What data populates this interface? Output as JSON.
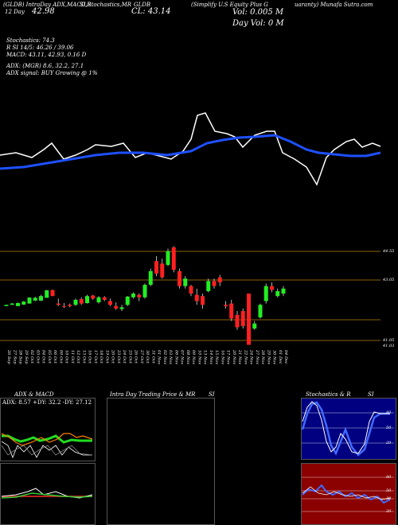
{
  "header": {
    "line1_left": "(GLDB) IntraDay ADX,MACD,R",
    "line1_mid": "SI,Stochastics,MR",
    "line1_right": "(Simplify U.S Equity Plus G",
    "line1_far": "uaranty) Munafa Sutra.com",
    "open_label": "12 Day",
    "open_val": "42.98",
    "close_label": "CL: 43.14",
    "symbol": "GLDB",
    "vol": "Vol: 0.005 M",
    "dayvol": "Day Vol: 0  M"
  },
  "indicators": {
    "stoch": "Stochastics: 74.3",
    "rsi": "R            SI 14/5: 46.26  /  39.06",
    "macd": "MACD: 43.11,  42.93,  0.16   D",
    "adx": "ADX:                        (MGR) 8.6,  32.2,  27.1",
    "adx_signal": "ADX  signal:                      BUY Growing @ 1%"
  },
  "price_levels": [
    "44.55",
    "43.05",
    "41.05",
    "41.03"
  ],
  "dates": [
    "26 Sep",
    "27 Sep",
    "28 Sep",
    "29 Sep",
    "02 Oct",
    "03 Oct",
    "04 Oct",
    "05 Oct",
    "06 Oct",
    "09 Oct",
    "10 Oct",
    "11 Oct",
    "12 Oct",
    "13 Oct",
    "16 Oct",
    "17 Oct",
    "18 Oct",
    "19 Oct",
    "20 Oct",
    "23 Oct",
    "24 Oct",
    "25 Oct",
    "26 Oct",
    "27 Oct",
    "30 Oct",
    "31 Oct",
    "01 Nov",
    "02 Nov",
    "03 Nov",
    "06 Nov",
    "07 Nov",
    "08 Nov",
    "09 Nov",
    "10 Nov",
    "13 Nov",
    "14 Nov",
    "15 Nov",
    "16 Nov",
    "17 Nov",
    "20 Nov",
    "21 Nov",
    "22 Nov",
    "24 Nov",
    "27 Nov",
    "28 Nov",
    "29 Nov",
    "30 Nov",
    "01 Dec",
    "04 Dec"
  ],
  "panels": {
    "adx_title": "ADX  & MACD",
    "adx_readout": "ADX: 8.57  +DY: 32.2  -DY: 27.12",
    "intra_title": "Intra  Day Trading Price  & MR",
    "intra_title2": "SI",
    "stoch_title": "Stochastics & R",
    "stoch_title2": "SI",
    "stoch_ticks": [
      "80",
      "50",
      "20"
    ],
    "rsi_ticks": [
      "80",
      "50",
      "30",
      "20"
    ]
  },
  "chart_data": {
    "type": "candlestick",
    "price_range": [
      40.9,
      45.2
    ],
    "candles": [
      [
        42.55,
        42.52,
        42.55,
        42.5
      ],
      [
        42.62,
        42.55,
        42.6,
        42.55
      ],
      [
        42.64,
        42.5,
        42.62,
        42.5
      ],
      [
        42.7,
        42.55,
        42.68,
        42.56
      ],
      [
        42.85,
        42.6,
        42.84,
        42.6
      ],
      [
        42.87,
        42.7,
        42.83,
        42.72
      ],
      [
        42.95,
        42.7,
        42.9,
        42.72
      ],
      [
        43.15,
        42.85,
        43.13,
        42.83
      ],
      [
        43.16,
        42.9,
        42.9,
        43.14
      ],
      [
        42.8,
        42.5,
        42.55,
        42.6
      ],
      [
        42.62,
        42.42,
        42.48,
        42.5
      ],
      [
        42.6,
        42.45,
        42.5,
        42.55
      ],
      [
        42.8,
        42.5,
        42.75,
        42.55
      ],
      [
        42.85,
        42.55,
        42.6,
        42.78
      ],
      [
        42.95,
        42.6,
        42.9,
        42.62
      ],
      [
        42.95,
        42.75,
        42.8,
        42.92
      ],
      [
        42.9,
        42.6,
        42.85,
        42.65
      ],
      [
        42.9,
        42.7,
        42.75,
        42.85
      ],
      [
        42.8,
        42.5,
        42.55,
        42.7
      ],
      [
        42.65,
        42.35,
        42.4,
        42.5
      ],
      [
        42.55,
        42.3,
        42.45,
        42.38
      ],
      [
        42.9,
        42.5,
        42.88,
        42.55
      ],
      [
        43.05,
        42.8,
        43.0,
        42.85
      ],
      [
        43.0,
        42.7,
        42.85,
        42.95
      ],
      [
        43.4,
        42.8,
        43.35,
        42.85
      ],
      [
        44.0,
        43.3,
        43.9,
        43.35
      ],
      [
        44.5,
        43.7,
        43.8,
        44.3
      ],
      [
        44.4,
        43.6,
        43.65,
        44.2
      ],
      [
        44.8,
        44.1,
        44.7,
        44.15
      ],
      [
        44.9,
        43.85,
        43.95,
        44.85
      ],
      [
        44.0,
        43.2,
        43.3,
        43.9
      ],
      [
        43.7,
        43.2,
        43.6,
        43.3
      ],
      [
        43.35,
        42.9,
        43.0,
        43.3
      ],
      [
        43.2,
        42.55,
        42.7,
        42.95
      ],
      [
        43.0,
        42.4,
        42.55,
        42.9
      ],
      [
        43.6,
        43.05,
        43.5,
        43.1
      ],
      [
        43.6,
        43.2,
        43.3,
        43.5
      ],
      [
        43.75,
        43.3,
        43.45,
        43.65
      ],
      [
        42.7,
        42.4,
        42.5,
        42.55
      ],
      [
        42.75,
        41.9,
        42.0,
        42.6
      ],
      [
        42.3,
        41.55,
        41.65,
        42.15
      ],
      [
        42.4,
        41.6,
        41.7,
        42.3
      ],
      [
        43.0,
        40.95,
        40.95,
        43.0
      ],
      [
        41.9,
        41.55,
        41.8,
        41.6
      ],
      [
        42.6,
        42.0,
        42.55,
        42.05
      ],
      [
        43.4,
        42.6,
        43.3,
        42.7
      ],
      [
        43.45,
        43.05,
        43.15,
        43.3
      ],
      [
        43.2,
        42.85,
        43.1,
        42.9
      ],
      [
        43.3,
        42.9,
        43.2,
        43.0
      ]
    ]
  }
}
